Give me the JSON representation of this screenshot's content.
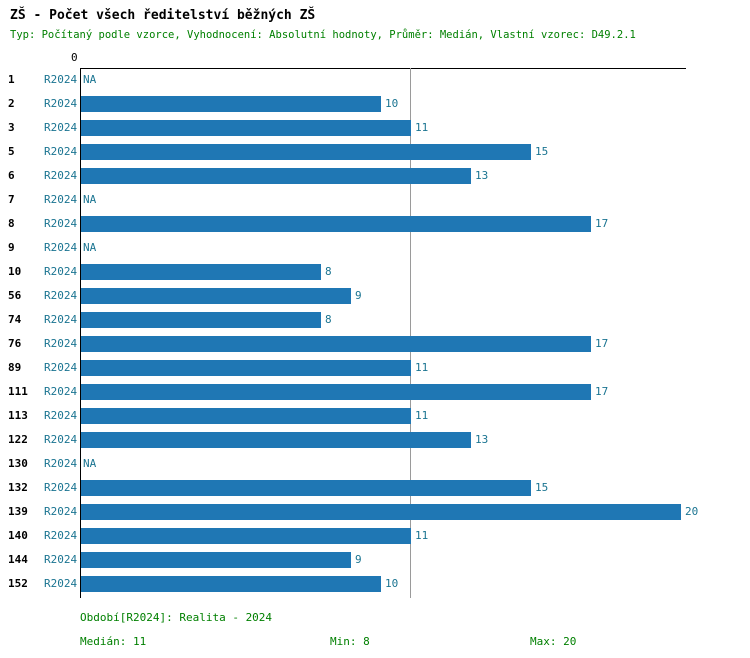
{
  "title": "ZŠ - Počet všech ředitelství běžných ZŠ",
  "subtitle": "Typ: Počítaný podle vzorce, Vyhodnocení: Absolutní hodnoty, Průměr: Medián, Vlastní vzorec: D49.2.1",
  "chart_data": {
    "type": "bar",
    "orientation": "horizontal",
    "title": "ZŠ - Počet všech ředitelství běžných ZŠ",
    "series_label": "R2024",
    "categories": [
      "1",
      "2",
      "3",
      "5",
      "6",
      "7",
      "8",
      "9",
      "10",
      "56",
      "74",
      "76",
      "89",
      "111",
      "113",
      "122",
      "130",
      "132",
      "139",
      "140",
      "144",
      "152"
    ],
    "values": [
      null,
      10,
      11,
      15,
      13,
      null,
      17,
      null,
      8,
      9,
      8,
      17,
      11,
      17,
      11,
      13,
      null,
      15,
      20,
      11,
      9,
      10
    ],
    "na_label": "NA",
    "xlim": [
      0,
      20
    ],
    "x_origin_label": "0",
    "median_line": 11,
    "legend": "none",
    "grid": "median reference line only"
  },
  "footer": {
    "period": "Období[R2024]: Realita - 2024",
    "median": "Medián: 11",
    "min": "Min: 8",
    "max": "Max: 20"
  },
  "colors": {
    "bar": "#1F77B4",
    "series_label": "#1A7491",
    "value_label": "#1A7491",
    "subtitle_text": "#008000",
    "footer_text": "#008000",
    "median_line": "#9A9A9A",
    "axis": "#000000"
  }
}
